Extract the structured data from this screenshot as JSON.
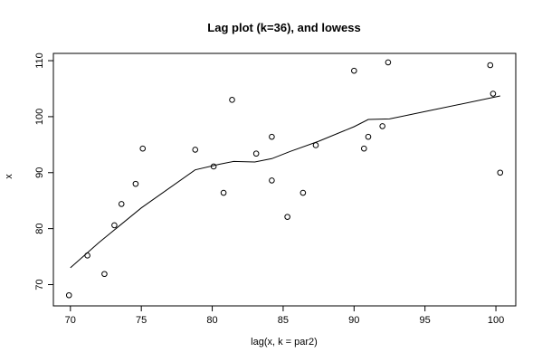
{
  "chart_data": {
    "type": "scatter",
    "title": "Lag plot (k=36), and lowess",
    "xlabel": "lag(x, k = par2)",
    "ylabel": "x",
    "xlim": [
      68.8,
      101.4
    ],
    "ylim": [
      66.2,
      111.3
    ],
    "x_ticks": [
      70,
      75,
      80,
      85,
      90,
      95,
      100
    ],
    "y_ticks": [
      70,
      80,
      90,
      100,
      110
    ],
    "colors": {
      "points": "#000000",
      "line": "#000000",
      "frame": "#000000"
    },
    "series": [
      {
        "type": "scatter",
        "points": [
          [
            69.9,
            68.1
          ],
          [
            71.2,
            75.2
          ],
          [
            72.4,
            71.9
          ],
          [
            73.1,
            80.6
          ],
          [
            73.6,
            84.4
          ],
          [
            74.6,
            88.0
          ],
          [
            75.1,
            94.3
          ],
          [
            78.8,
            94.1
          ],
          [
            80.1,
            91.1
          ],
          [
            80.8,
            86.4
          ],
          [
            81.4,
            103.0
          ],
          [
            83.1,
            93.4
          ],
          [
            84.2,
            96.4
          ],
          [
            84.2,
            88.6
          ],
          [
            85.3,
            82.1
          ],
          [
            86.4,
            86.4
          ],
          [
            87.3,
            94.9
          ],
          [
            90.0,
            108.2
          ],
          [
            90.7,
            94.3
          ],
          [
            91.0,
            96.4
          ],
          [
            92.0,
            98.3
          ],
          [
            92.4,
            109.7
          ],
          [
            99.6,
            109.2
          ],
          [
            99.8,
            104.1
          ],
          [
            100.3,
            90.0
          ]
        ]
      },
      {
        "type": "line",
        "points": [
          [
            70.0,
            73.0
          ],
          [
            72.0,
            77.5
          ],
          [
            75.0,
            83.7
          ],
          [
            78.8,
            90.5
          ],
          [
            80.5,
            91.5
          ],
          [
            81.5,
            92.0
          ],
          [
            83.0,
            91.9
          ],
          [
            84.2,
            92.5
          ],
          [
            85.5,
            93.8
          ],
          [
            87.5,
            95.6
          ],
          [
            90.0,
            98.2
          ],
          [
            91.0,
            99.5
          ],
          [
            92.5,
            99.6
          ],
          [
            95.0,
            100.9
          ],
          [
            100.3,
            103.7
          ]
        ]
      }
    ]
  }
}
